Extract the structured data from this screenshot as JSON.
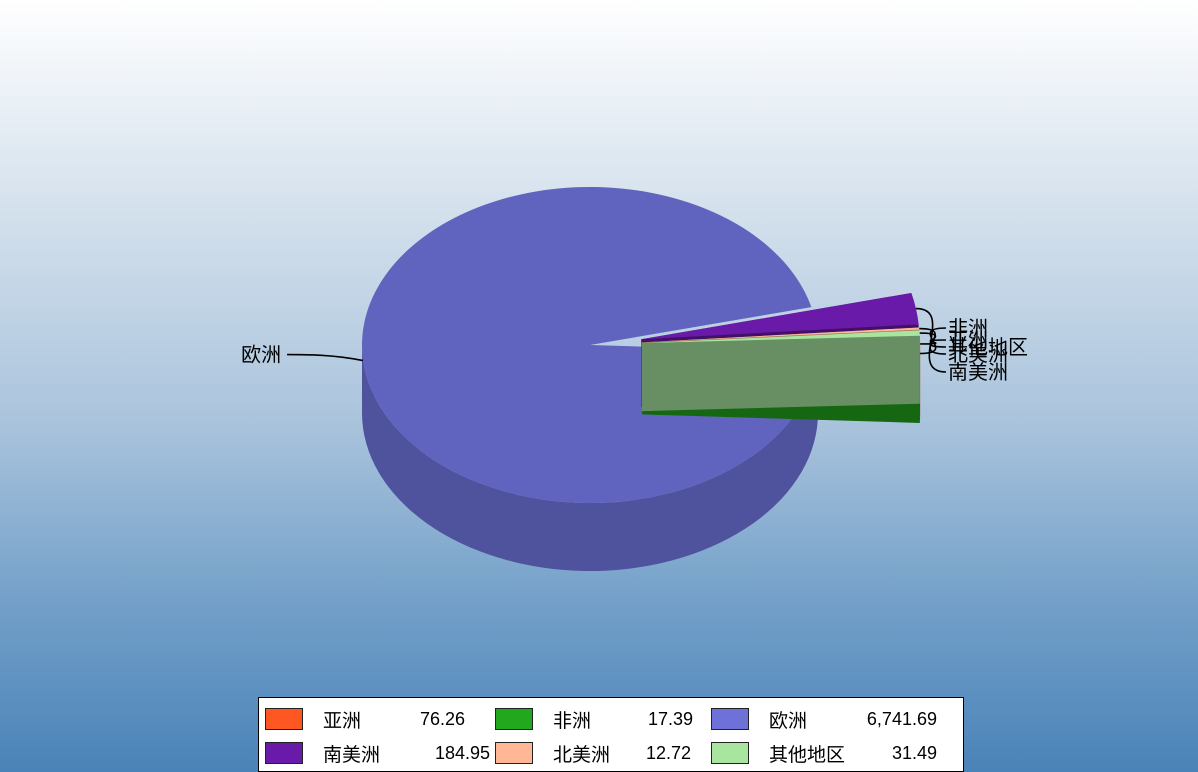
{
  "chart_data": {
    "type": "pie",
    "style": "3d-exploded",
    "title": "",
    "legend_position": "bottom",
    "slices": [
      {
        "name": "亚洲",
        "value": 76.26,
        "value_label": "76.26",
        "color": "#ff5722"
      },
      {
        "name": "非洲",
        "value": 17.39,
        "value_label": "17.39",
        "color": "#22a81c"
      },
      {
        "name": "欧洲",
        "value": 6741.69,
        "value_label": "6,741.69",
        "color": "#6e72d8"
      },
      {
        "name": "南美洲",
        "value": 184.95,
        "value_label": "184.95",
        "color": "#6a1aa8"
      },
      {
        "name": "北美洲",
        "value": 12.72,
        "value_label": "12.72",
        "color": "#ffb796"
      },
      {
        "name": "其他地区",
        "value": 31.49,
        "value_label": "31.49",
        "color": "#a8e6a0"
      }
    ]
  }
}
